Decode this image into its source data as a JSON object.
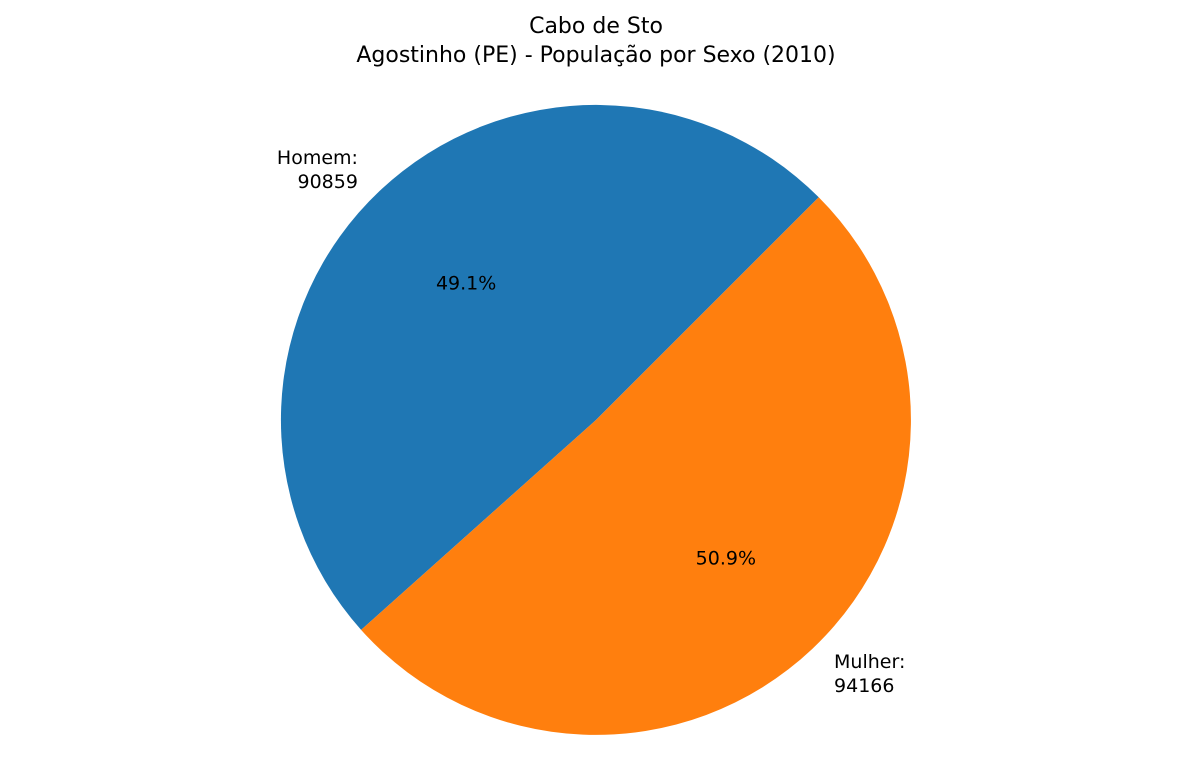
{
  "chart_data": {
    "type": "pie",
    "title_line1": "Cabo de Sto",
    "title_line2": "Agostinho (PE) - População por Sexo (2010)",
    "slices": [
      {
        "label_name": "Homem:",
        "value_text": "90859",
        "value": 90859,
        "percent_text": "49.1%",
        "color": "#1f77b4"
      },
      {
        "label_name": "Mulher:",
        "value_text": "94166",
        "value": 94166,
        "percent_text": "50.9%",
        "color": "#ff7f0e"
      }
    ],
    "start_angle_deg": 45,
    "legend": "none"
  }
}
